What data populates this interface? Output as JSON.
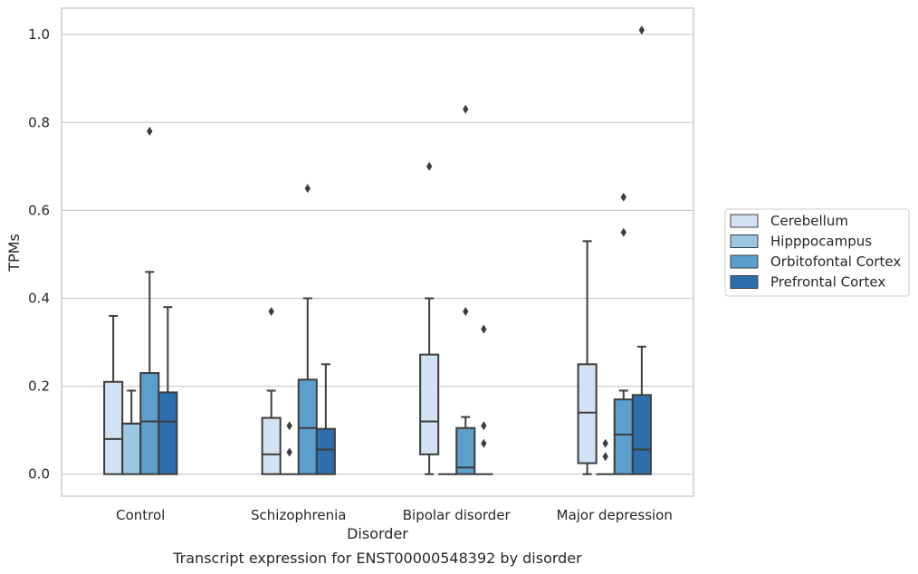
{
  "caption": "Transcript expression for ENST00000548392 by disorder",
  "chart_data": {
    "type": "box",
    "xlabel": "Disorder",
    "ylabel": "TPMs",
    "ylim": [
      -0.05,
      1.06
    ],
    "yticks": [
      0.0,
      0.2,
      0.4,
      0.6,
      0.8,
      1.0
    ],
    "ytick_labels": [
      "0.0",
      "0.2",
      "0.4",
      "0.6",
      "0.8",
      "1.0"
    ],
    "grid": "horizontal",
    "legend_position": "right",
    "categories": [
      "Control",
      "Schizophrenia",
      "Bipolar disorder",
      "Major depression"
    ],
    "series": [
      {
        "name": "Cerebellum",
        "color": "#d1e2f2",
        "boxes": [
          {
            "min": 0.0,
            "q1": 0.0,
            "median": 0.08,
            "q3": 0.21,
            "max": 0.36,
            "outliers": []
          },
          {
            "min": 0.0,
            "q1": 0.0,
            "median": 0.045,
            "q3": 0.128,
            "max": 0.19,
            "outliers": [
              0.37
            ]
          },
          {
            "min": 0.0,
            "q1": 0.045,
            "median": 0.12,
            "q3": 0.272,
            "max": 0.4,
            "outliers": [
              0.7
            ]
          },
          {
            "min": 0.0,
            "q1": 0.025,
            "median": 0.14,
            "q3": 0.25,
            "max": 0.53,
            "outliers": []
          }
        ]
      },
      {
        "name": "Hipppocampus",
        "color": "#9ac8e0",
        "boxes": [
          {
            "min": 0.0,
            "q1": 0.0,
            "median": 0.115,
            "q3": 0.115,
            "max": 0.19,
            "outliers": []
          },
          {
            "min": 0.0,
            "q1": 0.0,
            "median": 0.0,
            "q3": 0.0,
            "max": 0.0,
            "outliers": [
              0.05,
              0.11
            ]
          },
          {
            "min": 0.0,
            "q1": 0.0,
            "median": 0.0,
            "q3": 0.0,
            "max": 0.0,
            "outliers": []
          },
          {
            "min": 0.0,
            "q1": 0.0,
            "median": 0.0,
            "q3": 0.0,
            "max": 0.0,
            "outliers": [
              0.04,
              0.07
            ]
          }
        ]
      },
      {
        "name": "Orbitofontal Cortex",
        "color": "#5b9fcd",
        "boxes": [
          {
            "min": 0.0,
            "q1": 0.0,
            "median": 0.12,
            "q3": 0.23,
            "max": 0.46,
            "outliers": [
              0.78
            ]
          },
          {
            "min": 0.0,
            "q1": 0.0,
            "median": 0.105,
            "q3": 0.215,
            "max": 0.4,
            "outliers": [
              0.65
            ]
          },
          {
            "min": 0.0,
            "q1": 0.0,
            "median": 0.015,
            "q3": 0.105,
            "max": 0.13,
            "outliers": [
              0.37,
              0.83
            ]
          },
          {
            "min": 0.0,
            "q1": 0.0,
            "median": 0.09,
            "q3": 0.17,
            "max": 0.19,
            "outliers": [
              0.55,
              0.63
            ]
          }
        ]
      },
      {
        "name": "Prefrontal Cortex",
        "color": "#2c6fac",
        "boxes": [
          {
            "min": 0.0,
            "q1": 0.0,
            "median": 0.12,
            "q3": 0.186,
            "max": 0.38,
            "outliers": []
          },
          {
            "min": 0.0,
            "q1": 0.0,
            "median": 0.056,
            "q3": 0.103,
            "max": 0.25,
            "outliers": []
          },
          {
            "min": 0.0,
            "q1": 0.0,
            "median": 0.0,
            "q3": 0.0,
            "max": 0.0,
            "outliers": [
              0.07,
              0.11,
              0.33
            ]
          },
          {
            "min": 0.0,
            "q1": 0.0,
            "median": 0.056,
            "q3": 0.18,
            "max": 0.29,
            "outliers": [
              1.01
            ]
          }
        ]
      }
    ]
  }
}
